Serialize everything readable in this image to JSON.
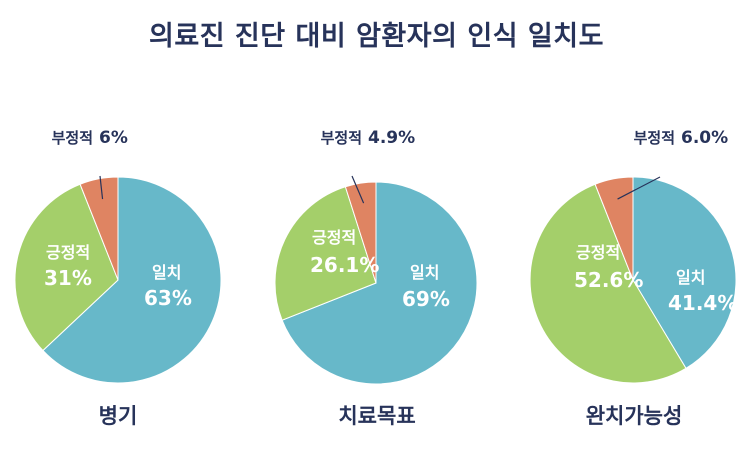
{
  "title": "의료진 진단 대비 암환자의 인식 일치도",
  "colors": {
    "agree": "#67b8c9",
    "positive": "#a4cf6a",
    "negative": "#df8462",
    "label_dark": "#27335a",
    "label_light": "#ffffff"
  },
  "chart_data": [
    {
      "type": "pie",
      "title": "병기",
      "slices": [
        {
          "label": "일치",
          "value": 63,
          "value_text": "63%"
        },
        {
          "label": "긍정적",
          "value": 31,
          "value_text": "31%"
        },
        {
          "label": "부정적",
          "value": 6,
          "value_text": "6%"
        }
      ]
    },
    {
      "type": "pie",
      "title": "치료목표",
      "slices": [
        {
          "label": "일치",
          "value": 69,
          "value_text": "69%"
        },
        {
          "label": "긍정적",
          "value": 26.1,
          "value_text": "26.1%"
        },
        {
          "label": "부정적",
          "value": 4.9,
          "value_text": "4.9%"
        }
      ]
    },
    {
      "type": "pie",
      "title": "완치가능성",
      "slices": [
        {
          "label": "일치",
          "value": 41.4,
          "value_text": "41.4%"
        },
        {
          "label": "긍정적",
          "value": 52.6,
          "value_text": "52.6%"
        },
        {
          "label": "부정적",
          "value": 6.0,
          "value_text": "6.0%"
        }
      ]
    }
  ]
}
